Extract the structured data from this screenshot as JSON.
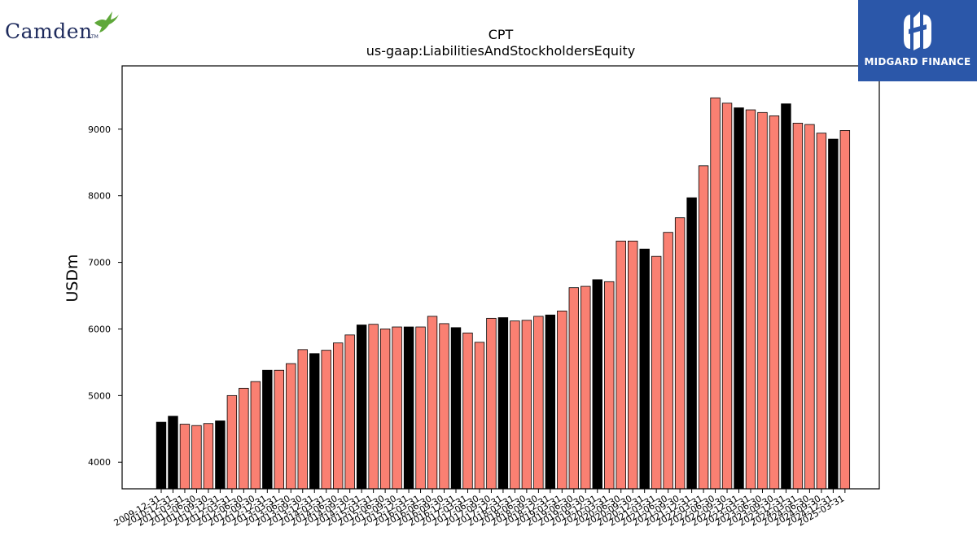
{
  "branding": {
    "left_logo_text": "Camden",
    "left_logo_tm": "TM",
    "right_logo_text": "MIDGARD FINANCE"
  },
  "chart_data": {
    "type": "bar",
    "title": "CPT",
    "subtitle": "us-gaap:LiabilitiesAndStockholdersEquity",
    "xlabel": "",
    "ylabel": "USDm",
    "ylim": [
      3600,
      9950
    ],
    "yticks": [
      4000,
      5000,
      6000,
      7000,
      8000,
      9000
    ],
    "grid": false,
    "colors": {
      "annual": "#000000",
      "quarterly": "#fa8072",
      "edge": "#000000"
    },
    "categories": [
      "2009-12-31",
      "2010-12-31",
      "2011-03-31",
      "2011-06-30",
      "2011-09-30",
      "2011-12-31",
      "2012-03-31",
      "2012-06-30",
      "2012-09-30",
      "2012-12-31",
      "2013-03-31",
      "2013-06-30",
      "2013-09-30",
      "2013-12-31",
      "2014-03-31",
      "2014-06-30",
      "2014-09-30",
      "2014-12-31",
      "2015-03-31",
      "2015-06-30",
      "2015-09-30",
      "2015-12-31",
      "2016-03-31",
      "2016-06-30",
      "2016-09-30",
      "2016-12-31",
      "2017-03-31",
      "2017-06-30",
      "2017-09-30",
      "2017-12-31",
      "2018-03-31",
      "2018-06-30",
      "2018-09-30",
      "2018-12-31",
      "2019-03-31",
      "2019-06-30",
      "2019-09-30",
      "2019-12-31",
      "2020-03-31",
      "2020-06-30",
      "2020-09-30",
      "2020-12-31",
      "2021-03-31",
      "2021-06-30",
      "2021-09-30",
      "2021-12-31",
      "2022-03-31",
      "2022-06-30",
      "2022-09-30",
      "2022-12-31",
      "2023-03-31",
      "2023-06-30",
      "2023-09-30",
      "2023-12-31",
      "2024-03-31",
      "2024-06-30",
      "2024-09-30",
      "2024-12-31",
      "2025-03-31"
    ],
    "values": [
      4600,
      4690,
      4570,
      4550,
      4580,
      4620,
      5000,
      5110,
      5210,
      5380,
      5380,
      5480,
      5690,
      5630,
      5680,
      5790,
      5910,
      6060,
      6070,
      6000,
      6030,
      6030,
      6030,
      6190,
      6080,
      6020,
      5940,
      5800,
      6160,
      6170,
      6120,
      6130,
      6190,
      6210,
      6270,
      6620,
      6640,
      6740,
      6710,
      7320,
      7320,
      7200,
      7090,
      7450,
      7670,
      7970,
      8450,
      9470,
      9390,
      9320,
      9290,
      9250,
      9200,
      9380,
      9090,
      9070,
      8940,
      8850,
      8980
    ],
    "annual_flags": [
      true,
      true,
      false,
      false,
      false,
      true,
      false,
      false,
      false,
      true,
      false,
      false,
      false,
      true,
      false,
      false,
      false,
      true,
      false,
      false,
      false,
      true,
      false,
      false,
      false,
      true,
      false,
      false,
      false,
      true,
      false,
      false,
      false,
      true,
      false,
      false,
      false,
      true,
      false,
      false,
      false,
      true,
      false,
      false,
      false,
      true,
      false,
      false,
      false,
      true,
      false,
      false,
      false,
      true,
      false,
      false,
      false,
      true,
      false
    ]
  }
}
